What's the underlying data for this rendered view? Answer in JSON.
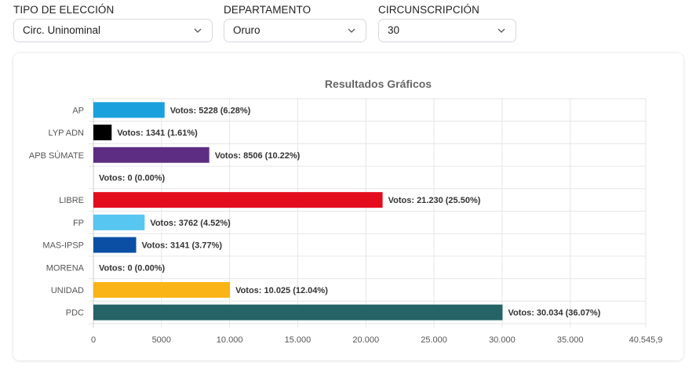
{
  "filters": {
    "tipo": {
      "label": "TIPO DE ELECCIÓN",
      "value": "Circ. Uninominal",
      "icon": "chevron-down-icon"
    },
    "departamento": {
      "label": "DEPARTAMENTO",
      "value": "Oruro",
      "icon": "chevron-down-icon"
    },
    "circunscripcion": {
      "label": "CIRCUNSCRIPCIÓN",
      "value": "30",
      "icon": "chevron-down-icon"
    }
  },
  "chart_data": {
    "type": "bar",
    "orientation": "horizontal",
    "title": "Resultados Gráficos",
    "xlabel": "",
    "ylabel": "",
    "xlim": [
      0,
      40545.9
    ],
    "grid": true,
    "legend": "none",
    "x_ticks": [
      {
        "value": 0,
        "label": "0"
      },
      {
        "value": 5000,
        "label": "5000"
      },
      {
        "value": 10000,
        "label": "10.000"
      },
      {
        "value": 15000,
        "label": "15.000"
      },
      {
        "value": 20000,
        "label": "20.000"
      },
      {
        "value": 25000,
        "label": "25.000"
      },
      {
        "value": 30000,
        "label": "30.000"
      },
      {
        "value": 35000,
        "label": "35.000"
      },
      {
        "value": 40545.9,
        "label": "40.545,9"
      }
    ],
    "categories": [
      "AP",
      "LYP ADN",
      "APB SÚMATE",
      "",
      "LIBRE",
      "FP",
      "MAS-IPSP",
      "MORENA",
      "UNIDAD",
      "PDC"
    ],
    "values": [
      5228,
      1341,
      8506,
      0,
      21230,
      3762,
      3141,
      0,
      10025,
      30034
    ],
    "data_labels": [
      "Votos: 5228 (6.28%)",
      "Votos: 1341 (1.61%)",
      "Votos: 8506 (10.22%)",
      "Votos: 0 (0.00%)",
      "Votos: 21.230 (25.50%)",
      "Votos: 3762 (4.52%)",
      "Votos: 3141 (3.77%)",
      "Votos: 0 (0.00%)",
      "Votos: 10.025 (12.04%)",
      "Votos: 30.034 (36.07%)"
    ],
    "colors": [
      "#1aa0dc",
      "#000000",
      "#5c2d82",
      "#ffffff",
      "#e30d1d",
      "#57c6f0",
      "#0a4fa3",
      "#ffffff",
      "#fbb415",
      "#246366"
    ]
  }
}
